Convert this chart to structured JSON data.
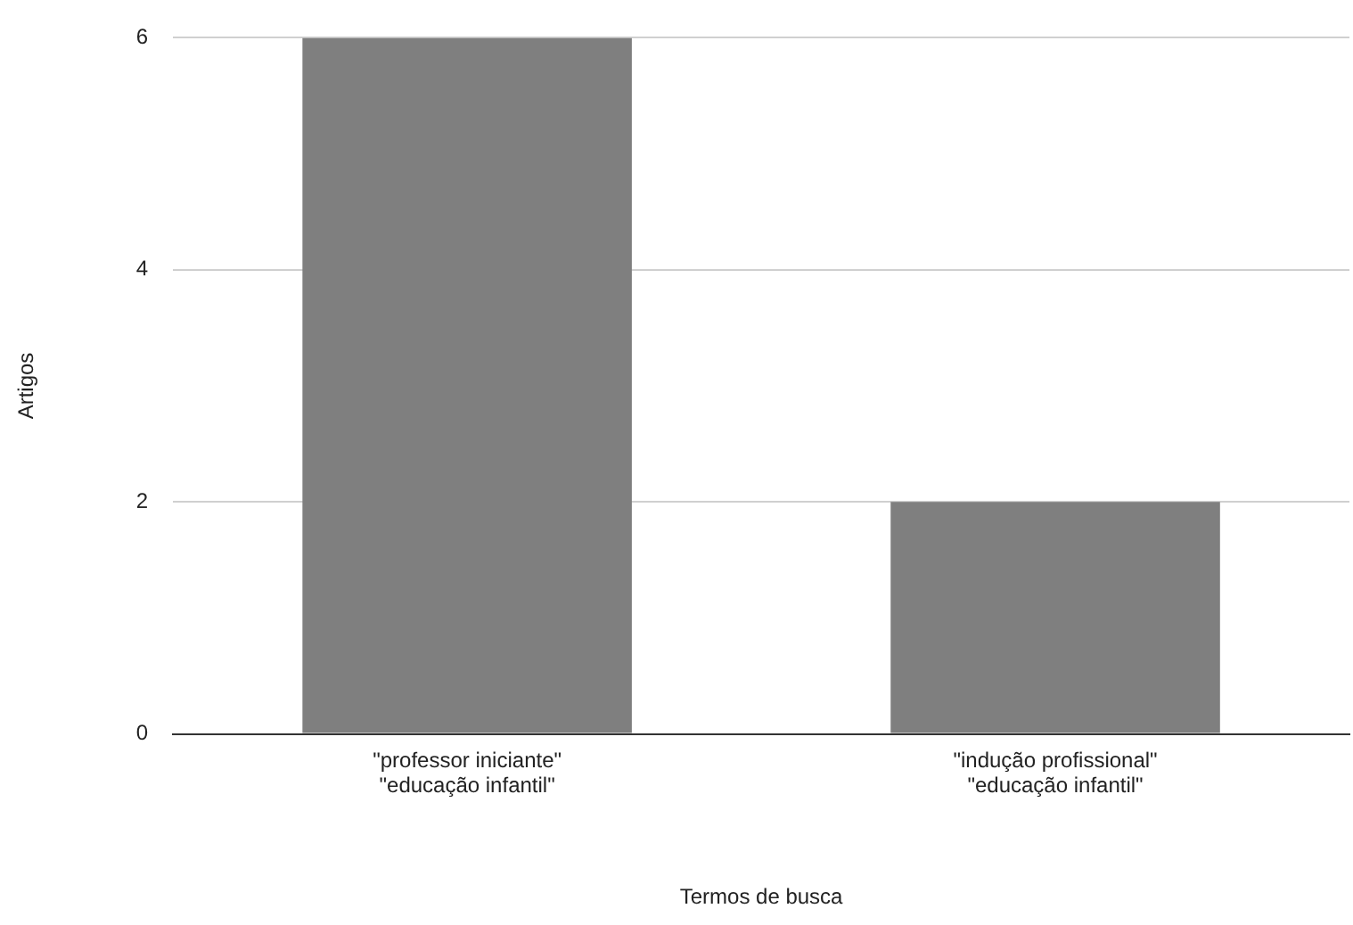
{
  "chart_data": {
    "type": "bar",
    "xlabel": "Termos de busca",
    "ylabel": "Artigos",
    "categories": [
      "\"professor iniciante\" \"educação infantil\"",
      "\"indução profissional\" \"educação infantil\""
    ],
    "values": [
      6,
      2
    ],
    "color": "#7f7f7f",
    "ylim": [
      0,
      6
    ],
    "yticks": [
      0,
      2,
      4,
      6
    ],
    "grid": "y",
    "legend": false
  }
}
